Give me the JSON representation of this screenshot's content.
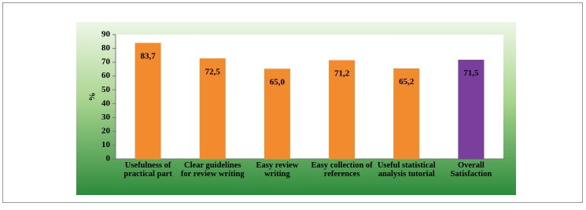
{
  "chart_data": {
    "type": "bar",
    "y_label": "%",
    "categories": [
      "Usefulness of practical part",
      "Clear guidelines for review writing",
      "Easy review writing",
      "Easy collection of references",
      "Useful statistical analysis tutorial",
      "Overall Satisfaction"
    ],
    "values": [
      83.7,
      72.5,
      65.0,
      71.2,
      65.2,
      71.5
    ],
    "value_labels": [
      "83,7",
      "72,5",
      "65,0",
      "71,2",
      "65,2",
      "71,5"
    ],
    "colors": [
      "#f28a2e",
      "#f28a2e",
      "#f28a2e",
      "#f28a2e",
      "#f28a2e",
      "#7a3f9d"
    ],
    "ylim": [
      0,
      90
    ],
    "yticks": [
      0,
      10,
      20,
      30,
      40,
      50,
      60,
      70,
      80,
      90
    ]
  }
}
